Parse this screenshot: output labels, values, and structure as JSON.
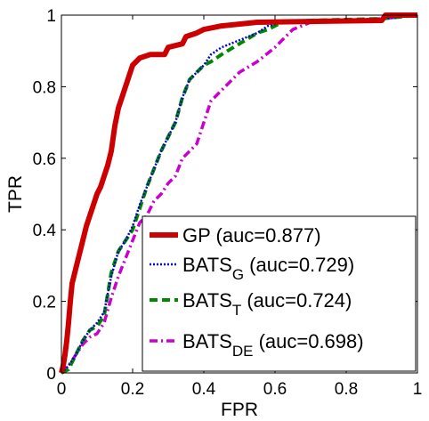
{
  "chart_data": {
    "type": "line",
    "xlabel": "FPR",
    "ylabel": "TPR",
    "xlim": [
      0,
      1
    ],
    "ylim": [
      0,
      1
    ],
    "xticks": [
      "0",
      "0.2",
      "0.4",
      "0.6",
      "0.8",
      "1"
    ],
    "yticks": [
      "0",
      "0.2",
      "0.4",
      "0.6",
      "0.8",
      "1"
    ],
    "grid": false,
    "legend_position": "bottom-right",
    "series": [
      {
        "name": "GP",
        "auc_label": "(auc=0.877)",
        "color": "#cc0000",
        "style": "solid",
        "points": [
          [
            0,
            0
          ],
          [
            0.005,
            0.02
          ],
          [
            0.01,
            0.05
          ],
          [
            0.015,
            0.09
          ],
          [
            0.02,
            0.14
          ],
          [
            0.025,
            0.2
          ],
          [
            0.03,
            0.25
          ],
          [
            0.04,
            0.29
          ],
          [
            0.05,
            0.33
          ],
          [
            0.06,
            0.37
          ],
          [
            0.07,
            0.41
          ],
          [
            0.08,
            0.44
          ],
          [
            0.09,
            0.47
          ],
          [
            0.1,
            0.5
          ],
          [
            0.11,
            0.52
          ],
          [
            0.12,
            0.55
          ],
          [
            0.13,
            0.58
          ],
          [
            0.14,
            0.62
          ],
          [
            0.15,
            0.69
          ],
          [
            0.16,
            0.74
          ],
          [
            0.17,
            0.77
          ],
          [
            0.18,
            0.8
          ],
          [
            0.19,
            0.83
          ],
          [
            0.2,
            0.86
          ],
          [
            0.21,
            0.87
          ],
          [
            0.22,
            0.88
          ],
          [
            0.25,
            0.89
          ],
          [
            0.29,
            0.89
          ],
          [
            0.3,
            0.91
          ],
          [
            0.34,
            0.92
          ],
          [
            0.35,
            0.94
          ],
          [
            0.38,
            0.95
          ],
          [
            0.4,
            0.96
          ],
          [
            0.45,
            0.97
          ],
          [
            0.55,
            0.98
          ],
          [
            0.9,
            0.985
          ],
          [
            0.91,
            1
          ],
          [
            1,
            1
          ]
        ]
      },
      {
        "name": "BATS",
        "subscript": "G",
        "auc_label": "(auc=0.729)",
        "color": "#0000cc",
        "style": "dotted",
        "points": [
          [
            0,
            0
          ],
          [
            0.02,
            0.02
          ],
          [
            0.04,
            0.05
          ],
          [
            0.06,
            0.09
          ],
          [
            0.08,
            0.12
          ],
          [
            0.1,
            0.14
          ],
          [
            0.12,
            0.17
          ],
          [
            0.14,
            0.27
          ],
          [
            0.16,
            0.34
          ],
          [
            0.18,
            0.37
          ],
          [
            0.2,
            0.41
          ],
          [
            0.22,
            0.47
          ],
          [
            0.24,
            0.52
          ],
          [
            0.26,
            0.57
          ],
          [
            0.28,
            0.62
          ],
          [
            0.3,
            0.66
          ],
          [
            0.32,
            0.7
          ],
          [
            0.34,
            0.77
          ],
          [
            0.36,
            0.82
          ],
          [
            0.38,
            0.84
          ],
          [
            0.4,
            0.86
          ],
          [
            0.42,
            0.89
          ],
          [
            0.45,
            0.91
          ],
          [
            0.5,
            0.93
          ],
          [
            0.55,
            0.95
          ],
          [
            0.58,
            0.97
          ],
          [
            0.62,
            0.98
          ],
          [
            0.7,
            0.985
          ],
          [
            0.9,
            0.99
          ],
          [
            1,
            1
          ]
        ]
      },
      {
        "name": "BATS",
        "subscript": "T",
        "auc_label": "(auc=0.724)",
        "color": "#008800",
        "style": "dashed",
        "points": [
          [
            0,
            0
          ],
          [
            0.02,
            0.01
          ],
          [
            0.04,
            0.05
          ],
          [
            0.06,
            0.09
          ],
          [
            0.08,
            0.12
          ],
          [
            0.1,
            0.13
          ],
          [
            0.12,
            0.16
          ],
          [
            0.14,
            0.28
          ],
          [
            0.16,
            0.34
          ],
          [
            0.18,
            0.37
          ],
          [
            0.2,
            0.4
          ],
          [
            0.22,
            0.46
          ],
          [
            0.24,
            0.52
          ],
          [
            0.26,
            0.57
          ],
          [
            0.28,
            0.62
          ],
          [
            0.3,
            0.66
          ],
          [
            0.32,
            0.7
          ],
          [
            0.34,
            0.77
          ],
          [
            0.36,
            0.82
          ],
          [
            0.38,
            0.84
          ],
          [
            0.4,
            0.86
          ],
          [
            0.42,
            0.87
          ],
          [
            0.45,
            0.89
          ],
          [
            0.5,
            0.92
          ],
          [
            0.55,
            0.95
          ],
          [
            0.58,
            0.96
          ],
          [
            0.62,
            0.98
          ],
          [
            0.7,
            0.985
          ],
          [
            0.9,
            0.99
          ],
          [
            1,
            1
          ]
        ]
      },
      {
        "name": "BATS",
        "subscript": "DE",
        "auc_label": "(auc=0.698)",
        "color": "#cc00cc",
        "style": "dashdot",
        "points": [
          [
            0,
            0
          ],
          [
            0.02,
            0.02
          ],
          [
            0.04,
            0.05
          ],
          [
            0.06,
            0.08
          ],
          [
            0.08,
            0.1
          ],
          [
            0.1,
            0.11
          ],
          [
            0.12,
            0.14
          ],
          [
            0.14,
            0.21
          ],
          [
            0.16,
            0.27
          ],
          [
            0.18,
            0.32
          ],
          [
            0.2,
            0.37
          ],
          [
            0.22,
            0.42
          ],
          [
            0.24,
            0.44
          ],
          [
            0.26,
            0.48
          ],
          [
            0.28,
            0.5
          ],
          [
            0.3,
            0.53
          ],
          [
            0.32,
            0.55
          ],
          [
            0.34,
            0.6
          ],
          [
            0.36,
            0.62
          ],
          [
            0.38,
            0.64
          ],
          [
            0.4,
            0.7
          ],
          [
            0.42,
            0.76
          ],
          [
            0.44,
            0.78
          ],
          [
            0.46,
            0.8
          ],
          [
            0.5,
            0.84
          ],
          [
            0.55,
            0.87
          ],
          [
            0.6,
            0.91
          ],
          [
            0.65,
            0.96
          ],
          [
            0.7,
            0.98
          ],
          [
            0.9,
            0.99
          ],
          [
            1,
            1
          ]
        ]
      }
    ]
  }
}
